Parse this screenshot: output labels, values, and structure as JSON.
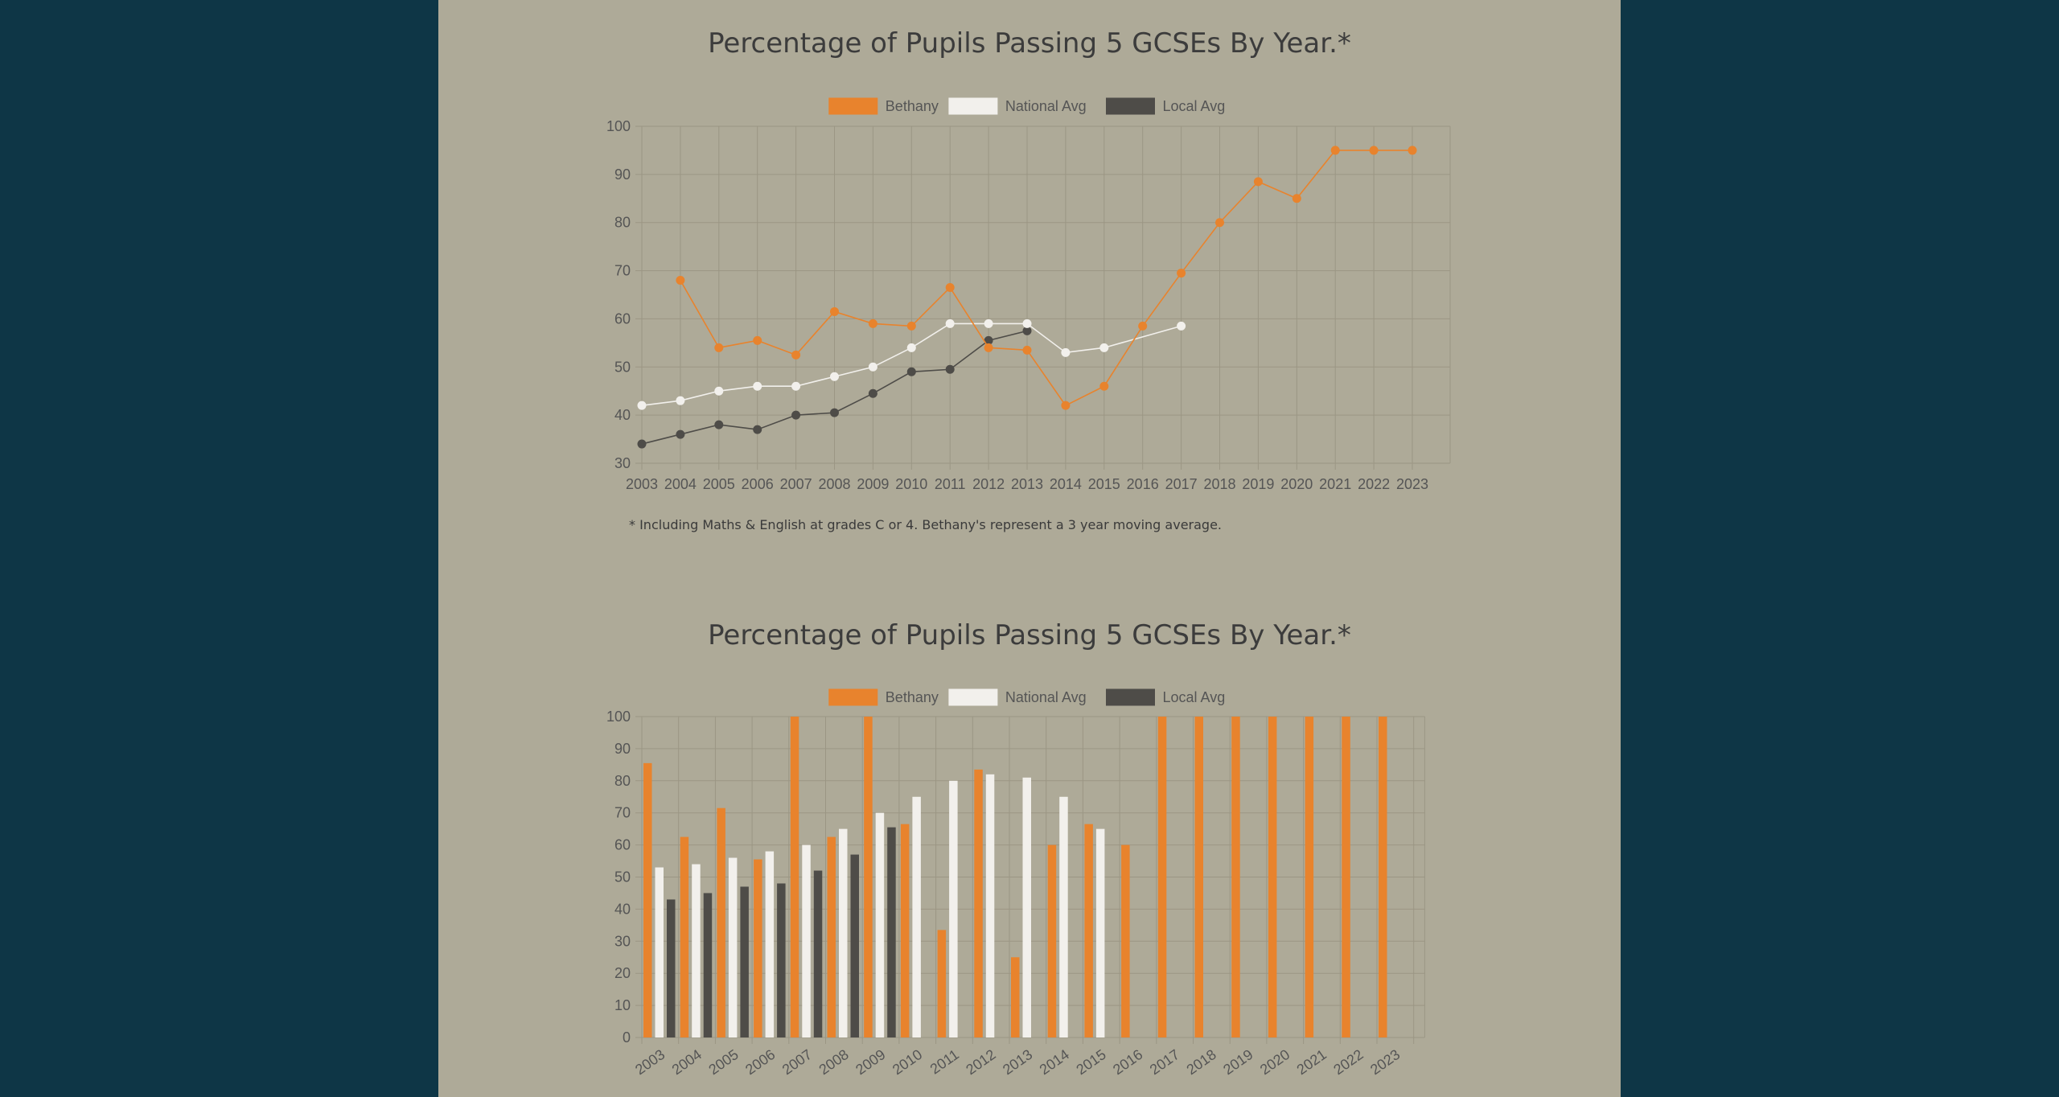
{
  "colors": {
    "page_bg": "#0e3646",
    "panel_bg": "#aeaa98",
    "bethany": "#e8832d",
    "national": "#f2f0ec",
    "local": "#4e4c48",
    "grid": "#9b9684"
  },
  "footnote": "* Including Maths & English at grades C or 4. Bethany's represent a 3 year moving average.",
  "chart_data": [
    {
      "type": "line",
      "title": "Percentage of Pupils Passing 5 GCSEs By Year.*",
      "xlabel": "",
      "ylabel": "",
      "categories": [
        "2003",
        "2004",
        "2005",
        "2006",
        "2007",
        "2008",
        "2009",
        "2010",
        "2011",
        "2012",
        "2013",
        "2014",
        "2015",
        "2016",
        "2017",
        "2018",
        "2019",
        "2020",
        "2021",
        "2022",
        "2023"
      ],
      "y_ticks": [
        30,
        40,
        50,
        60,
        70,
        80,
        90,
        100
      ],
      "ylim": [
        30,
        100
      ],
      "grid": true,
      "legend_position": "top",
      "series": [
        {
          "name": "Bethany",
          "color": "#e8832d",
          "values": [
            null,
            68,
            54,
            55.5,
            52.5,
            61.5,
            59,
            58.5,
            66.5,
            54,
            53.5,
            42,
            46,
            58.5,
            69.5,
            80,
            88.5,
            85,
            95,
            95,
            95
          ]
        },
        {
          "name": "National Avg",
          "color": "#f2f0ec",
          "values": [
            42,
            43,
            45,
            46,
            46,
            48,
            50,
            54,
            59,
            59,
            59,
            53,
            54,
            null,
            58.5,
            null,
            null,
            null,
            null,
            null,
            null
          ]
        },
        {
          "name": "Local Avg",
          "color": "#4e4c48",
          "values": [
            34,
            36,
            38,
            37,
            40,
            40.5,
            44.5,
            49,
            49.5,
            55.5,
            57.5,
            null,
            null,
            null,
            null,
            null,
            null,
            null,
            null,
            null,
            null
          ]
        }
      ]
    },
    {
      "type": "bar",
      "title": "Percentage of Pupils Passing 5 GCSEs By Year.*",
      "xlabel": "",
      "ylabel": "",
      "categories": [
        "2003",
        "2004",
        "2005",
        "2006",
        "2007",
        "2008",
        "2009",
        "2010",
        "2011",
        "2012",
        "2013",
        "2014",
        "2015",
        "2016",
        "2017",
        "2018",
        "2019",
        "2020",
        "2021",
        "2022",
        "2023"
      ],
      "y_ticks": [
        0,
        10,
        20,
        30,
        40,
        50,
        60,
        70,
        80,
        90,
        100
      ],
      "ylim": [
        0,
        100
      ],
      "grid": true,
      "legend_position": "top",
      "series": [
        {
          "name": "Bethany",
          "color": "#e8832d",
          "values": [
            85.5,
            62.5,
            71.5,
            55.5,
            100,
            62.5,
            100,
            66.5,
            33.5,
            83.5,
            25,
            60,
            66.5,
            60,
            100,
            100,
            100,
            100,
            100,
            100,
            100
          ]
        },
        {
          "name": "National Avg",
          "color": "#f2f0ec",
          "values": [
            53,
            54,
            56,
            58,
            60,
            65,
            70,
            75,
            80,
            82,
            81,
            75,
            65,
            null,
            null,
            null,
            null,
            null,
            null,
            null,
            null
          ]
        },
        {
          "name": "Local Avg",
          "color": "#4e4c48",
          "values": [
            43,
            45,
            47,
            48,
            52,
            57,
            65.5,
            null,
            null,
            null,
            null,
            null,
            null,
            null,
            null,
            null,
            null,
            null,
            null,
            null,
            null
          ]
        }
      ]
    }
  ]
}
